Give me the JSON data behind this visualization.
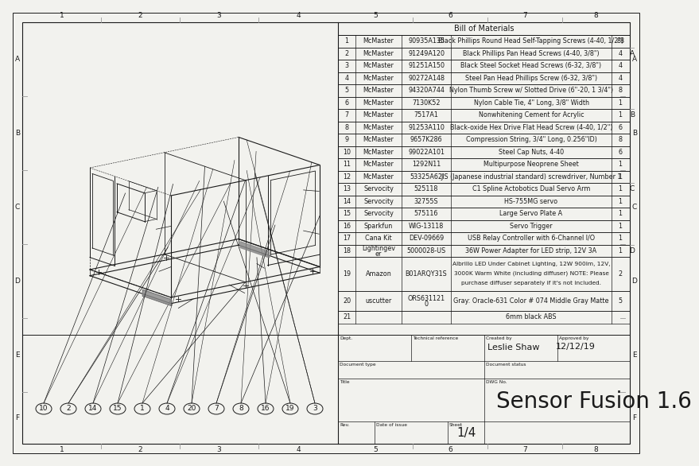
{
  "title": "Sensor Fusion 1.6",
  "sheet": "1/4",
  "created_by": "Leslie Shaw",
  "date": "12/12/19",
  "bom_title": "Bill of Materials",
  "bom_rows": [
    [
      "1",
      "McMaster",
      "90935A135",
      "Black Phillips Round Head Self-Tapping Screws (4-40, 1/2\")",
      "88"
    ],
    [
      "2",
      "McMaster",
      "91249A120",
      "Black Phillips Pan Head Screws (4-40, 3/8\")",
      "4"
    ],
    [
      "3",
      "McMaster",
      "91251A150",
      "Black Steel Socket Head Screws (6-32, 3/8\")",
      "4"
    ],
    [
      "4",
      "McMaster",
      "90272A148",
      "Steel Pan Head Phillips Screw (6-32, 3/8\")",
      "4"
    ],
    [
      "5",
      "McMaster",
      "94320A744",
      "Nylon Thumb Screw w/ Slotted Drive (6\"-20, 1 3/4\")",
      "8"
    ],
    [
      "6",
      "McMaster",
      "7130K52",
      "Nylon Cable Tie, 4\" Long, 3/8\" Width",
      "1"
    ],
    [
      "7",
      "McMaster",
      "7517A1",
      "Nonwhitening Cement for Acrylic",
      "1"
    ],
    [
      "8",
      "McMaster",
      "91253A110",
      "Black-oxide Hex Drive Flat Head Screw (4-40, 1/2\")",
      "6"
    ],
    [
      "9",
      "McMaster",
      "9657K286",
      "Compression String, 3/4\" Long, 0.256\"ID)",
      "8"
    ],
    [
      "10",
      "McMaster",
      "99022A101",
      "Steel Cap Nuts, 4-40",
      "6"
    ],
    [
      "11",
      "McMaster",
      "1292N11",
      "Multipurpose Neoprene Sheet",
      "1"
    ],
    [
      "12",
      "McMaster",
      "53325A62",
      "JIS (Japanese industrial standard) screwdriver, Number 1",
      "1"
    ],
    [
      "13",
      "Servocity",
      "525118",
      "C1 Spline Actobotics Dual Servo Arm",
      "1"
    ],
    [
      "14",
      "Servocity",
      "32755S",
      "HS-755MG servo",
      "1"
    ],
    [
      "15",
      "Servocity",
      "575116",
      "Large Servo Plate A",
      "1"
    ],
    [
      "16",
      "Sparkfun",
      "WIG-13118",
      "Servo Trigger",
      "1"
    ],
    [
      "17",
      "Cana Kit",
      "DEV-09669",
      "USB Relay Controller with 6-Channel I/O",
      "1"
    ],
    [
      "18",
      "Lightingever",
      "5000028-US",
      "36W Power Adapter for LED strip, 12V 3A",
      "1"
    ],
    [
      "19",
      "Amazon",
      "B01ARQY31S",
      "Albrillo LED Under Cabinet Lighting, 12W 900lm, 12V,\n3000K Warm White (including diffuser) NOTE: Please\npurchase diffuser separately if it's not included.",
      "2"
    ],
    [
      "20",
      "uscutter",
      "ORS631121\n0",
      "Gray: Oracle-631 Color # 074 Middle Gray Matte",
      "5"
    ],
    [
      "21",
      "",
      "",
      "6mm black ABS",
      ""
    ]
  ],
  "callouts": [
    "10",
    "2",
    "14",
    "15",
    "1",
    "4",
    "20",
    "7",
    "8",
    "16",
    "19",
    "3"
  ],
  "bg_color": "#f2f2ee",
  "line_color": "#1a1a1a",
  "grid_color": "#999999"
}
